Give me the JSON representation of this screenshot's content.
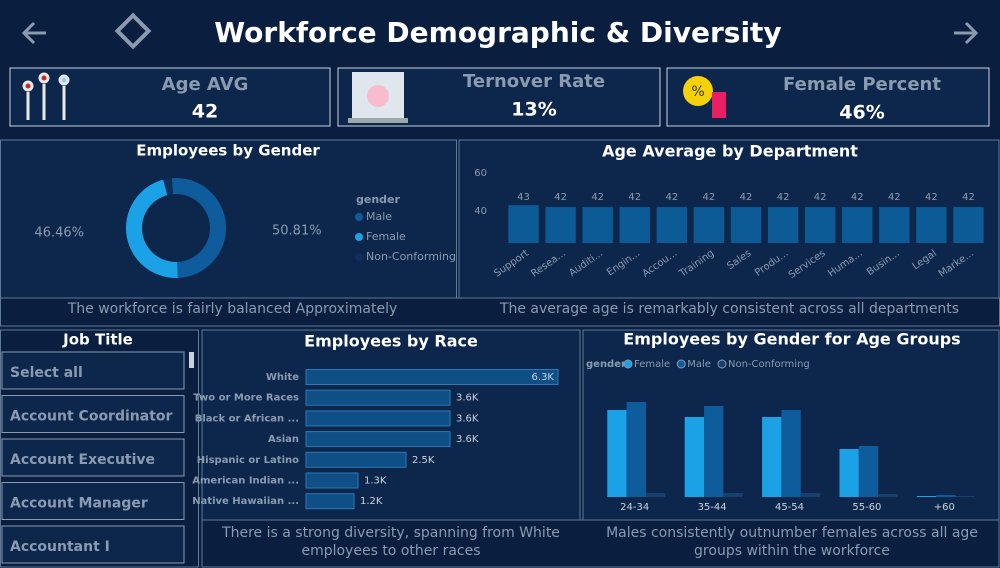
{
  "header": {
    "title": "Workforce Demographic & Diversity"
  },
  "kpis": [
    {
      "label": "Age AVG",
      "value": "42"
    },
    {
      "label": "Ternover Rate",
      "value": "13%"
    },
    {
      "label": "Female Percent",
      "value": "46%"
    }
  ],
  "chart_data": [
    {
      "type": "donut",
      "title": "Employees by Gender",
      "legend_title": "gender",
      "categories": [
        "Male",
        "Female",
        "Non-Conforming"
      ],
      "values": [
        50.81,
        46.46,
        2.73
      ],
      "value_labels": [
        "50.81%",
        "46.46%",
        null
      ],
      "colors": [
        "#0f5c9c",
        "#1ba1e6",
        "#0c2f5c"
      ]
    },
    {
      "type": "bar",
      "title": "Age Average by Department",
      "categories": [
        "Support",
        "Resea...",
        "Auditi...",
        "Engin...",
        "Accou...",
        "Training",
        "Sales",
        "Produ...",
        "Services",
        "Huma...",
        "Busin...",
        "Legal",
        "Marke..."
      ],
      "values": [
        43,
        42,
        42,
        42,
        42,
        42,
        42,
        42,
        42,
        42,
        42,
        42,
        42
      ],
      "color": "#0c5a96",
      "ylim": [
        23,
        62
      ],
      "yticks": [
        40,
        60
      ]
    },
    {
      "type": "hbar",
      "title": "Employees by Race",
      "categories": [
        "White",
        "Two or More Races",
        "Black or African ...",
        "Asian",
        "Hispanic or Latino",
        "American Indian ...",
        "Native Hawaiian ..."
      ],
      "values": [
        6300,
        3600,
        3600,
        3600,
        2500,
        1300,
        1200
      ],
      "value_labels": [
        "6.3K",
        "3.6K",
        "3.6K",
        "3.6K",
        "2.5K",
        "1.3K",
        "1.2K"
      ],
      "color": "#0e4f85",
      "xlim": [
        0,
        6300
      ]
    },
    {
      "type": "grouped_bar",
      "title": "Employees by Gender for Age Groups",
      "legend_title": "gender",
      "categories": [
        "24-34",
        "35-44",
        "45-54",
        "55-60",
        "+60"
      ],
      "series": [
        {
          "name": "Female",
          "color": "#1ba1e6",
          "values": [
            87,
            80,
            80,
            48,
            1
          ]
        },
        {
          "name": "Male",
          "color": "#0f5c9c",
          "values": [
            95,
            91,
            87,
            51,
            2
          ]
        },
        {
          "name": "Non-Conforming",
          "color": "#16406e",
          "values": [
            4,
            4,
            4,
            3,
            1
          ]
        }
      ],
      "ylim": [
        0,
        100
      ]
    }
  ],
  "notes": [
    "The workforce is fairly balanced Approximately",
    "The average age is remarkably consistent across all departments",
    "There is a strong diversity, spanning from White employees to other races",
    "Males consistently outnumber females across all age groups within the workforce"
  ],
  "slicer": {
    "title": "Job Title",
    "items": [
      "Select all",
      "Account Coordinator",
      "Account Executive",
      "Account Manager",
      "Accountant I"
    ]
  }
}
